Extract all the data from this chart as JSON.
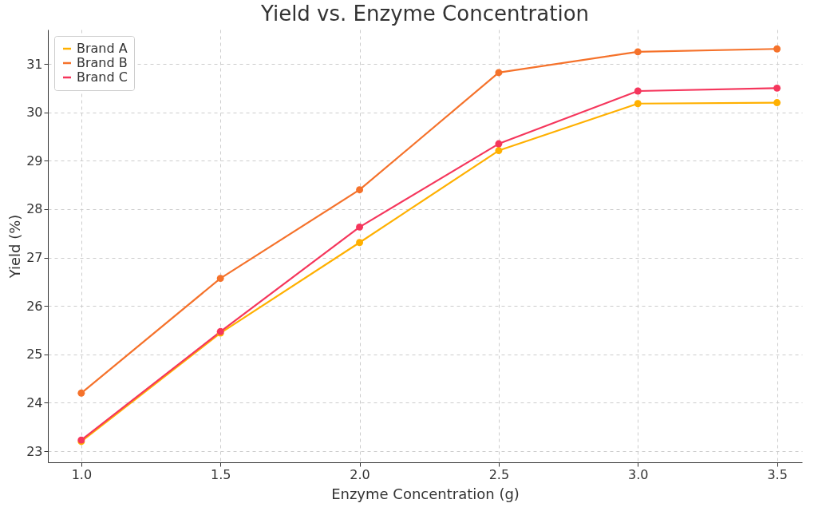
{
  "chart_data": {
    "type": "line",
    "title": "Yield vs. Enzyme Concentration",
    "xlabel": "Enzyme Concentration (g)",
    "ylabel": "Yield (%)",
    "x": [
      1.0,
      1.5,
      2.0,
      2.5,
      3.0,
      3.5
    ],
    "series": [
      {
        "name": "Brand A",
        "color": "#ffb000",
        "values": [
          23.2,
          25.44,
          27.31,
          29.21,
          30.18,
          30.2
        ]
      },
      {
        "name": "Brand B",
        "color": "#f5722b",
        "values": [
          24.2,
          26.57,
          28.4,
          30.82,
          31.25,
          31.31
        ]
      },
      {
        "name": "Brand C",
        "color": "#f5365c",
        "values": [
          23.23,
          25.47,
          27.63,
          29.35,
          30.44,
          30.5
        ]
      }
    ],
    "xlim": [
      0.88,
      3.59
    ],
    "ylim": [
      22.77,
      31.71
    ],
    "xticks": [
      {
        "value": 1.0,
        "label": "1.0"
      },
      {
        "value": 1.5,
        "label": "1.5"
      },
      {
        "value": 2.0,
        "label": "2.0"
      },
      {
        "value": 2.5,
        "label": "2.5"
      },
      {
        "value": 3.0,
        "label": "3.0"
      },
      {
        "value": 3.5,
        "label": "3.5"
      }
    ],
    "yticks": [
      23,
      24,
      25,
      26,
      27,
      28,
      29,
      30,
      31
    ],
    "grid": true,
    "legend": "top left",
    "marker": "circle",
    "line_style": "solid"
  }
}
